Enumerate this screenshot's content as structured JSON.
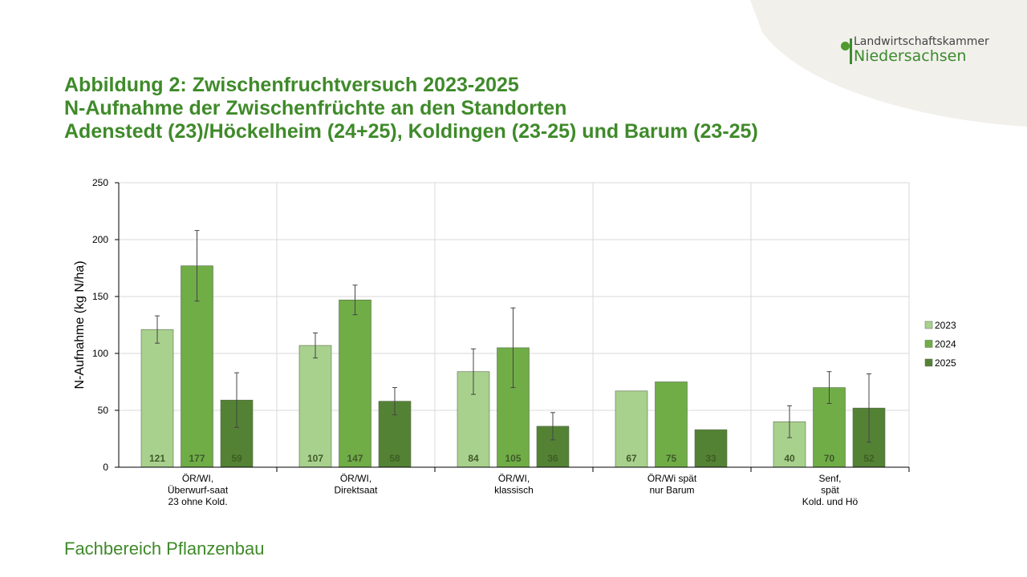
{
  "logo": {
    "line1": "Landwirtschaftskammer",
    "line2": "Niedersachsen"
  },
  "title": [
    "Abbildung 2: Zwischenfruchtversuch 2023-2025",
    "N-Aufnahme der Zwischenfrüchte an den Standorten",
    "Adenstedt (23)/Höckelheim (24+25), Koldingen (23-25) und Barum (23-25)"
  ],
  "footer": "Fachbereich Pflanzenbau",
  "chart_data": {
    "type": "bar",
    "ylabel": "N-Aufnahme (kg N/ha)",
    "ylim": [
      0,
      250
    ],
    "yticks": [
      0,
      50,
      100,
      150,
      200,
      250
    ],
    "grid": true,
    "legend_position": "right",
    "categories": [
      [
        "ÖR/WI,",
        "Überwurf-saat",
        "23 ohne Kold."
      ],
      [
        "ÖR/WI,",
        "Direktsaat"
      ],
      [
        "ÖR/WI,",
        "klassisch"
      ],
      [
        "ÖR/Wi spät",
        "nur Barum"
      ],
      [
        "Senf,",
        "spät",
        "Kold. und Hö"
      ]
    ],
    "series": [
      {
        "name": "2023",
        "color": "#a9d18e",
        "values": [
          121,
          107,
          84,
          67,
          40
        ],
        "errors": [
          12,
          11,
          20,
          null,
          14
        ]
      },
      {
        "name": "2024",
        "color": "#70ad47",
        "values": [
          177,
          147,
          105,
          75,
          70
        ],
        "errors": [
          31,
          13,
          35,
          null,
          14
        ]
      },
      {
        "name": "2025",
        "color": "#548235",
        "values": [
          59,
          58,
          36,
          33,
          52
        ],
        "errors": [
          24,
          12,
          12,
          null,
          30
        ]
      }
    ]
  }
}
